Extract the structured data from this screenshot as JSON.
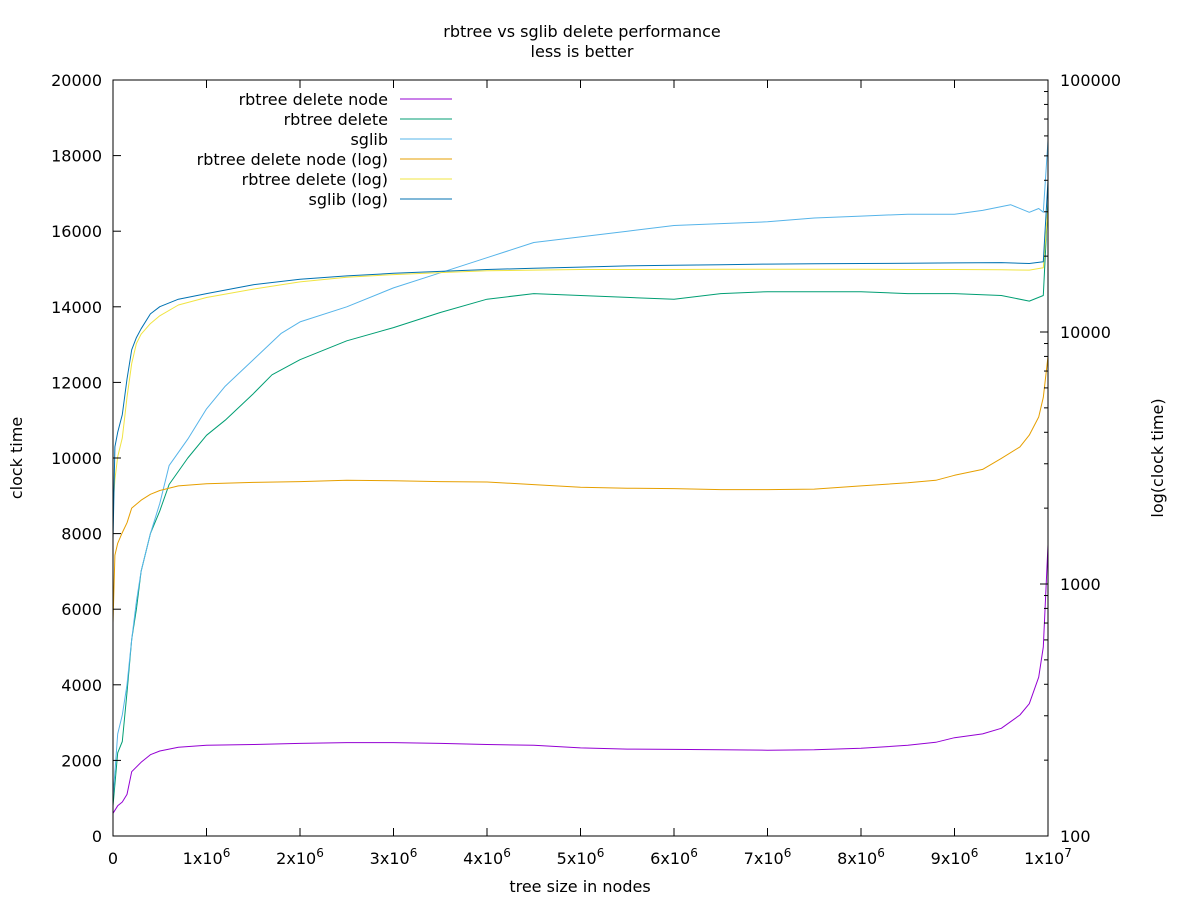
{
  "chart_data": {
    "type": "line",
    "title": "rbtree vs sglib delete performance",
    "subtitle": "less is better",
    "xlabel": "tree size in nodes",
    "ylabel": "clock time",
    "y2label": "log(clock time)",
    "xlim": [
      0,
      10000000
    ],
    "ylim": [
      0,
      20000
    ],
    "y2lim": [
      100,
      100000
    ],
    "y2scale": "log",
    "grid": false,
    "legend_position": "top-left",
    "x_ticks": [
      {
        "value": 0,
        "mant": "0",
        "exp": ""
      },
      {
        "value": 1000000,
        "mant": "1x10",
        "exp": "6"
      },
      {
        "value": 2000000,
        "mant": "2x10",
        "exp": "6"
      },
      {
        "value": 3000000,
        "mant": "3x10",
        "exp": "6"
      },
      {
        "value": 4000000,
        "mant": "4x10",
        "exp": "6"
      },
      {
        "value": 5000000,
        "mant": "5x10",
        "exp": "6"
      },
      {
        "value": 6000000,
        "mant": "6x10",
        "exp": "6"
      },
      {
        "value": 7000000,
        "mant": "7x10",
        "exp": "6"
      },
      {
        "value": 8000000,
        "mant": "8x10",
        "exp": "6"
      },
      {
        "value": 9000000,
        "mant": "9x10",
        "exp": "6"
      },
      {
        "value": 10000000,
        "mant": "1x10",
        "exp": "7"
      }
    ],
    "y_ticks": [
      {
        "value": 0,
        "label": "0"
      },
      {
        "value": 2000,
        "label": "2000"
      },
      {
        "value": 4000,
        "label": "4000"
      },
      {
        "value": 6000,
        "label": "6000"
      },
      {
        "value": 8000,
        "label": "8000"
      },
      {
        "value": 10000,
        "label": "10000"
      },
      {
        "value": 12000,
        "label": "12000"
      },
      {
        "value": 14000,
        "label": "14000"
      },
      {
        "value": 16000,
        "label": "16000"
      },
      {
        "value": 18000,
        "label": "18000"
      },
      {
        "value": 20000,
        "label": "20000"
      }
    ],
    "y2_ticks": [
      {
        "value": 100,
        "label": "100"
      },
      {
        "value": 1000,
        "label": "1000"
      },
      {
        "value": 10000,
        "label": "10000"
      },
      {
        "value": 100000,
        "label": "100000"
      }
    ],
    "series": [
      {
        "name": "rbtree delete node",
        "axis": "y",
        "color": "#9400d3",
        "x": [
          0,
          50000,
          100000,
          150000,
          200000,
          300000,
          400000,
          500000,
          700000,
          1000000,
          1500000,
          2000000,
          2500000,
          3000000,
          3500000,
          4000000,
          4500000,
          5000000,
          5500000,
          6000000,
          6500000,
          7000000,
          7500000,
          8000000,
          8500000,
          8800000,
          9000000,
          9300000,
          9500000,
          9700000,
          9800000,
          9900000,
          9950000,
          10000000
        ],
        "values": [
          600,
          800,
          900,
          1100,
          1700,
          1950,
          2150,
          2250,
          2350,
          2400,
          2420,
          2450,
          2470,
          2470,
          2450,
          2420,
          2400,
          2330,
          2300,
          2290,
          2280,
          2270,
          2280,
          2320,
          2400,
          2480,
          2600,
          2700,
          2850,
          3200,
          3500,
          4200,
          5000,
          7700
        ]
      },
      {
        "name": "rbtree delete",
        "axis": "y",
        "color": "#009e73",
        "x": [
          0,
          50000,
          100000,
          150000,
          200000,
          250000,
          300000,
          400000,
          500000,
          600000,
          800000,
          1000000,
          1200000,
          1500000,
          1700000,
          2000000,
          2500000,
          3000000,
          3500000,
          4000000,
          4500000,
          5000000,
          5500000,
          6000000,
          6500000,
          7000000,
          7500000,
          8000000,
          8500000,
          9000000,
          9500000,
          9800000,
          9950000,
          10000000
        ],
        "values": [
          800,
          2200,
          2500,
          3800,
          5200,
          6000,
          7000,
          8000,
          8600,
          9300,
          10000,
          10600,
          11000,
          11700,
          12200,
          12600,
          13100,
          13450,
          13850,
          14200,
          14350,
          14300,
          14250,
          14200,
          14350,
          14400,
          14400,
          14400,
          14350,
          14350,
          14300,
          14150,
          14300,
          16800
        ]
      },
      {
        "name": "sglib",
        "axis": "y",
        "color": "#56b4e9",
        "x": [
          0,
          50000,
          100000,
          150000,
          200000,
          250000,
          300000,
          400000,
          500000,
          600000,
          800000,
          1000000,
          1200000,
          1500000,
          1800000,
          2000000,
          2500000,
          3000000,
          3500000,
          4000000,
          4500000,
          5000000,
          5500000,
          6000000,
          6500000,
          7000000,
          7500000,
          8000000,
          8500000,
          9000000,
          9300000,
          9600000,
          9800000,
          9900000,
          9950000,
          10000000
        ],
        "values": [
          1000,
          2700,
          3200,
          4000,
          5200,
          6200,
          7000,
          8000,
          8800,
          9800,
          10500,
          11300,
          11900,
          12600,
          13300,
          13600,
          14000,
          14500,
          14900,
          15300,
          15700,
          15850,
          16000,
          16150,
          16200,
          16250,
          16350,
          16400,
          16450,
          16450,
          16550,
          16700,
          16500,
          16600,
          16500,
          18400
        ]
      },
      {
        "name": "rbtree delete node (log)",
        "axis": "y2",
        "color": "#e69f00",
        "x": [
          0,
          20000,
          50000,
          100000,
          150000,
          200000,
          300000,
          400000,
          500000,
          700000,
          1000000,
          1500000,
          2000000,
          2500000,
          3000000,
          3500000,
          4000000,
          4500000,
          5000000,
          5500000,
          6000000,
          6500000,
          7000000,
          7500000,
          8000000,
          8500000,
          8800000,
          9000000,
          9300000,
          9500000,
          9700000,
          9800000,
          9900000,
          9950000,
          10000000
        ],
        "values": [
          700,
          1300,
          1450,
          1600,
          1750,
          2000,
          2150,
          2270,
          2350,
          2450,
          2500,
          2530,
          2550,
          2580,
          2570,
          2550,
          2540,
          2480,
          2420,
          2400,
          2390,
          2370,
          2370,
          2380,
          2450,
          2520,
          2580,
          2700,
          2850,
          3150,
          3500,
          3900,
          4600,
          5500,
          8000
        ]
      },
      {
        "name": "rbtree delete (log)",
        "axis": "y2",
        "color": "#f0e442",
        "x": [
          0,
          20000,
          50000,
          100000,
          150000,
          200000,
          250000,
          300000,
          400000,
          500000,
          700000,
          1000000,
          1500000,
          2000000,
          2500000,
          3000000,
          3500000,
          4000000,
          4500000,
          5000000,
          5500000,
          6000000,
          6500000,
          7000000,
          7500000,
          8000000,
          8500000,
          9000000,
          9500000,
          9800000,
          9950000,
          10000000
        ],
        "values": [
          2000,
          2600,
          3200,
          3800,
          5500,
          7500,
          9000,
          9800,
          10800,
          11600,
          12800,
          13700,
          14800,
          15800,
          16500,
          16900,
          17200,
          17500,
          17600,
          17700,
          17700,
          17700,
          17750,
          17750,
          17750,
          17750,
          17700,
          17700,
          17650,
          17600,
          18000,
          31000
        ]
      },
      {
        "name": "sglib (log)",
        "axis": "y2",
        "color": "#0072b2",
        "x": [
          0,
          20000,
          50000,
          100000,
          150000,
          200000,
          250000,
          300000,
          400000,
          500000,
          700000,
          1000000,
          1500000,
          2000000,
          2500000,
          3000000,
          3500000,
          4000000,
          4500000,
          5000000,
          5500000,
          6000000,
          6500000,
          7000000,
          7500000,
          8000000,
          8500000,
          9000000,
          9500000,
          9800000,
          9950000,
          10000000
        ],
        "values": [
          1500,
          3500,
          4000,
          4700,
          6500,
          8500,
          9500,
          10300,
          11800,
          12600,
          13500,
          14200,
          15400,
          16200,
          16700,
          17100,
          17400,
          17700,
          17900,
          18100,
          18300,
          18400,
          18500,
          18600,
          18650,
          18700,
          18750,
          18800,
          18850,
          18700,
          19000,
          40000
        ]
      }
    ]
  }
}
